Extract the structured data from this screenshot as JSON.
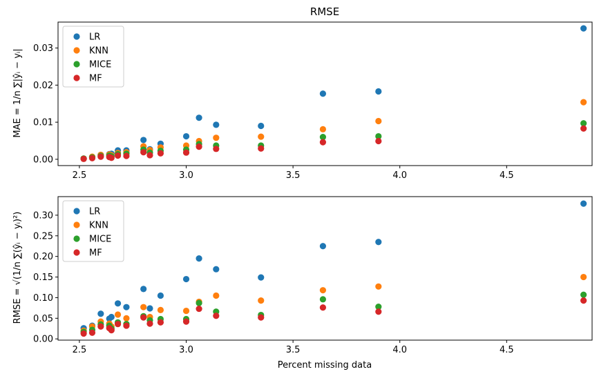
{
  "chart_data": [
    {
      "type": "scatter",
      "title": "RMSE",
      "xlabel": "",
      "ylabel": "MAE = 1/n ∑|ŷᵢ − yᵢ|",
      "xlim": [
        2.4,
        4.9
      ],
      "ylim": [
        -0.0017,
        0.037
      ],
      "xticks": [
        2.5,
        3.0,
        3.5,
        4.0,
        4.5
      ],
      "xtick_labels": [
        "2.5",
        "3.0",
        "3.5",
        "4.0",
        "4.5"
      ],
      "yticks": [
        0.0,
        0.01,
        0.02,
        0.03
      ],
      "ytick_labels": [
        "0.00",
        "0.01",
        "0.02",
        "0.03"
      ],
      "legend": "top-left",
      "grid": false,
      "x": [
        2.52,
        2.56,
        2.6,
        2.64,
        2.65,
        2.68,
        2.72,
        2.8,
        2.83,
        2.88,
        3.0,
        3.06,
        3.14,
        3.35,
        3.64,
        3.9,
        4.86
      ],
      "series": [
        {
          "name": "LR",
          "color": "#1f77b4",
          "values": [
            0.0002,
            0.0006,
            0.0012,
            0.0014,
            0.0015,
            0.0024,
            0.0024,
            0.0052,
            0.0027,
            0.0042,
            0.0062,
            0.0112,
            0.0093,
            0.009,
            0.0177,
            0.0183,
            0.0353
          ]
        },
        {
          "name": "KNN",
          "color": "#ff7f0e",
          "values": [
            0.0002,
            0.0007,
            0.0012,
            0.0013,
            0.0011,
            0.0017,
            0.0019,
            0.0035,
            0.0025,
            0.0032,
            0.0037,
            0.0049,
            0.0058,
            0.0061,
            0.0081,
            0.0103,
            0.0154
          ]
        },
        {
          "name": "MICE",
          "color": "#2ca02c",
          "values": [
            0.0002,
            0.0005,
            0.0009,
            0.001,
            0.0008,
            0.0014,
            0.0015,
            0.0026,
            0.0018,
            0.0023,
            0.0026,
            0.0041,
            0.0037,
            0.0037,
            0.006,
            0.0062,
            0.0097
          ]
        },
        {
          "name": "MF",
          "color": "#d62728",
          "values": [
            0.0001,
            0.0003,
            0.0007,
            0.0006,
            0.0004,
            0.001,
            0.0009,
            0.0019,
            0.0011,
            0.0016,
            0.0018,
            0.0034,
            0.0028,
            0.0029,
            0.0046,
            0.0049,
            0.0083
          ]
        }
      ]
    },
    {
      "type": "scatter",
      "title": "",
      "xlabel": "Percent missing data",
      "ylabel": "RMSE = √(1/n ∑(ŷᵢ − yᵢ)²)",
      "xlim": [
        2.4,
        4.9
      ],
      "ylim": [
        -0.003,
        0.345
      ],
      "xticks": [
        2.5,
        3.0,
        3.5,
        4.0,
        4.5
      ],
      "xtick_labels": [
        "2.5",
        "3.0",
        "3.5",
        "4.0",
        "4.5"
      ],
      "yticks": [
        0.0,
        0.05,
        0.1,
        0.15,
        0.2,
        0.25,
        0.3
      ],
      "ytick_labels": [
        "0.00",
        "0.05",
        "0.10",
        "0.15",
        "0.20",
        "0.25",
        "0.30"
      ],
      "legend": "top-left",
      "grid": false,
      "x": [
        2.52,
        2.56,
        2.6,
        2.64,
        2.65,
        2.68,
        2.72,
        2.8,
        2.83,
        2.88,
        3.0,
        3.06,
        3.14,
        3.35,
        3.64,
        3.9,
        4.86
      ],
      "series": [
        {
          "name": "LR",
          "color": "#1f77b4",
          "values": [
            0.026,
            0.032,
            0.061,
            0.049,
            0.053,
            0.086,
            0.077,
            0.121,
            0.074,
            0.105,
            0.145,
            0.195,
            0.169,
            0.149,
            0.225,
            0.235,
            0.328
          ]
        },
        {
          "name": "KNN",
          "color": "#ff7f0e",
          "values": [
            0.02,
            0.03,
            0.042,
            0.037,
            0.03,
            0.059,
            0.05,
            0.077,
            0.053,
            0.07,
            0.068,
            0.09,
            0.105,
            0.093,
            0.118,
            0.127,
            0.15
          ]
        },
        {
          "name": "MICE",
          "color": "#2ca02c",
          "values": [
            0.017,
            0.022,
            0.035,
            0.032,
            0.025,
            0.04,
            0.036,
            0.055,
            0.045,
            0.048,
            0.048,
            0.087,
            0.066,
            0.058,
            0.096,
            0.078,
            0.107
          ]
        },
        {
          "name": "MF",
          "color": "#d62728",
          "values": [
            0.013,
            0.015,
            0.03,
            0.026,
            0.021,
            0.036,
            0.032,
            0.052,
            0.037,
            0.04,
            0.042,
            0.073,
            0.056,
            0.052,
            0.076,
            0.066,
            0.093
          ]
        }
      ]
    }
  ]
}
